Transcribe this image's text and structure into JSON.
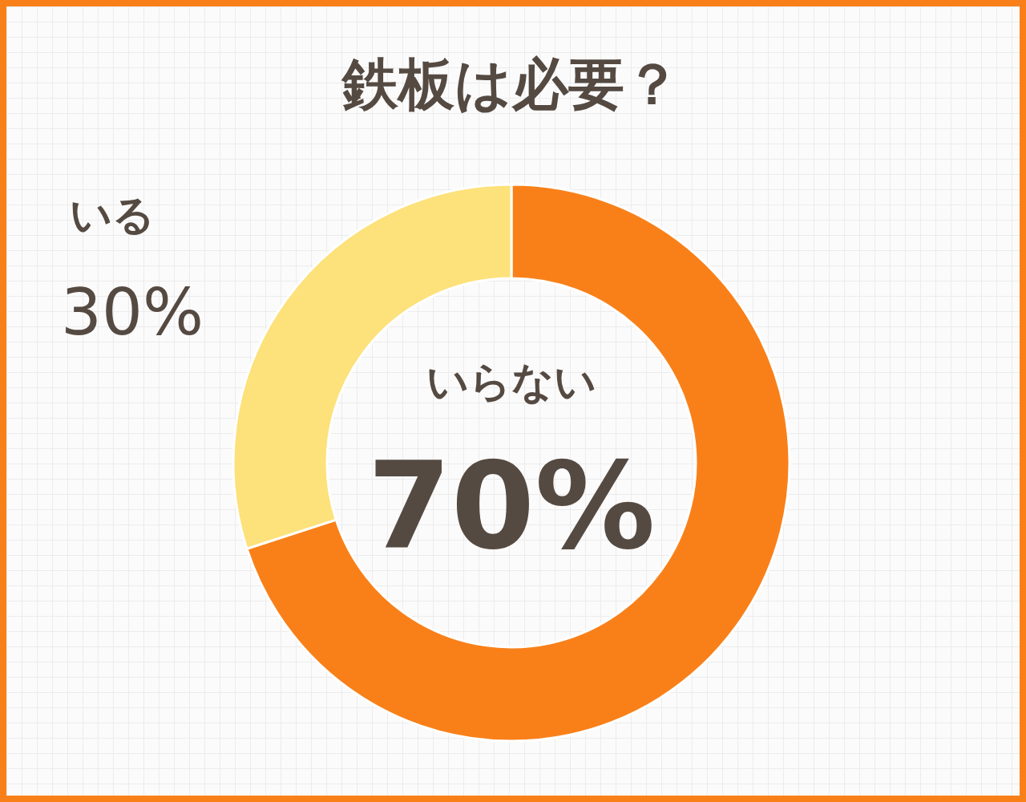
{
  "chart_data": {
    "type": "donut",
    "title": "鉄板は必要？",
    "categories": [
      "いらない",
      "いる"
    ],
    "values": [
      70,
      30
    ],
    "colors": [
      "#f98019",
      "#fde17a"
    ],
    "value_labels": [
      "70%",
      "30%"
    ]
  }
}
